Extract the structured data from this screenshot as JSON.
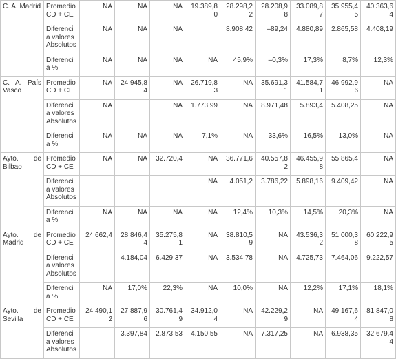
{
  "table": {
    "groups": [
      {
        "entity": "C. A. Madrid",
        "rows": [
          {
            "metric": "Promedio CD + CE",
            "values": [
              "NA",
              "NA",
              "NA",
              "19.389,80",
              "28.298,22",
              "28.208,98",
              "33.089,87",
              "35.955,45",
              "40.363,64"
            ]
          },
          {
            "metric": "Diferencia valores Absolutos",
            "values": [
              "NA",
              "NA",
              "NA",
              null,
              "8.908,42",
              "–89,24",
              "4.880,89",
              "2.865,58",
              "4.408,19"
            ]
          },
          {
            "metric": "Diferencia %",
            "values": [
              "NA",
              "NA",
              "NA",
              "NA",
              "45,9%",
              "–0,3%",
              "17,3%",
              "8,7%",
              "12,3%"
            ]
          }
        ]
      },
      {
        "entity": "C. A. País Vasco",
        "rows": [
          {
            "metric": "Promedio CD + CE",
            "values": [
              "NA",
              "24.945,84",
              "NA",
              "26.719,83",
              "NA",
              "35.691,31",
              "41.584,71",
              "46.992,96",
              "NA"
            ]
          },
          {
            "metric": "Diferencia valores Absolutos",
            "values": [
              "NA",
              null,
              "NA",
              "1.773,99",
              "NA",
              "8.971,48",
              "5.893,4",
              "5.408,25",
              "NA"
            ]
          },
          {
            "metric": "Diferencia %",
            "values": [
              "NA",
              "NA",
              "NA",
              "7,1%",
              "NA",
              "33,6%",
              "16,5%",
              "13,0%",
              "NA"
            ]
          }
        ]
      },
      {
        "entity": "Ayto. de Bilbao",
        "rows": [
          {
            "metric": "Promedio CD + CE",
            "values": [
              "NA",
              "NA",
              "32.720,4",
              "NA",
              "36.771,6",
              "40.557,82",
              "46.455,98",
              "55.865,4",
              "NA"
            ]
          },
          {
            "metric": "Diferencia valores Absolutos",
            "values": [
              null,
              null,
              null,
              "NA",
              "4.051,2",
              "3.786,22",
              "5.898,16",
              "9.409,42",
              "NA"
            ]
          },
          {
            "metric": "Diferencia %",
            "values": [
              "NA",
              "NA",
              "NA",
              "NA",
              "12,4%",
              "10,3%",
              "14,5%",
              "20,3%",
              "NA"
            ]
          }
        ]
      },
      {
        "entity": "Ayto. de Madrid",
        "rows": [
          {
            "metric": "Promedio CD + CE",
            "values": [
              "24.662,4",
              "28.846,44",
              "35.275,81",
              "NA",
              "38.810,59",
              "NA",
              "43.536,32",
              "51.000,38",
              "60.222,95"
            ]
          },
          {
            "metric": "Diferencia valores Absolutos",
            "values": [
              null,
              "4.184,04",
              "6.429,37",
              "NA",
              "3.534,78",
              "NA",
              "4.725,73",
              "7.464,06",
              "9.222,57"
            ]
          },
          {
            "metric": "Diferencia %",
            "values": [
              "NA",
              "17,0%",
              "22,3%",
              "NA",
              "10,0%",
              "NA",
              "12,2%",
              "17,1%",
              "18,1%"
            ]
          }
        ]
      },
      {
        "entity": "Ayto. de Sevilla",
        "rows": [
          {
            "metric": "Promedio CD + CE",
            "values": [
              "24.490,12",
              "27.887,96",
              "30.761,49",
              "34.912,04",
              "NA",
              "42.229,29",
              "NA",
              "49.167,64",
              "81.847,08"
            ]
          },
          {
            "metric": "Diferencia valores Absolutos",
            "values": [
              null,
              "3.397,84",
              "2.873,53",
              "4.150,55",
              "NA",
              "7.317,25",
              "NA",
              "6.938,35",
              "32.679,44"
            ]
          }
        ]
      }
    ]
  }
}
